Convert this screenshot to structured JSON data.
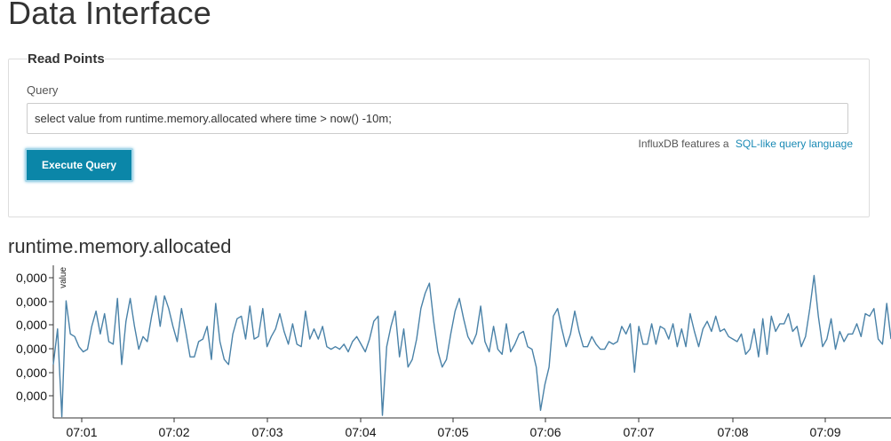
{
  "header": {
    "title": "Data Interface"
  },
  "read_points": {
    "legend": "Read Points",
    "query_label": "Query",
    "query_value": "select value from runtime.memory.allocated where time > now() -10m;",
    "hint_text": "InfluxDB features a",
    "hint_link": "SQL-like query language",
    "execute_label": "Execute Query"
  },
  "series": {
    "title": "runtime.memory.allocated"
  },
  "colors": {
    "line": "#4a82a8",
    "button": "#0b86a8",
    "link": "#1a8ab5"
  },
  "chart_data": {
    "type": "line",
    "ylabel": "value",
    "y_tick_labels": [
      "0,000",
      "0,000",
      "0,000",
      "0,000",
      "0,000",
      "0,000"
    ],
    "x_tick_labels": [
      "07:01",
      "07:02",
      "07:03",
      "07:04",
      "07:05",
      "07:06",
      "07:07",
      "07:08",
      "07:09"
    ],
    "series": [
      {
        "values": [
          2.1,
          3.5,
          0.05,
          4.6,
          3.3,
          3.2,
          2.8,
          2.6,
          2.7,
          3.6,
          4.2,
          3.3,
          4.1,
          3.0,
          2.9,
          4.7,
          2.1,
          3.8,
          4.7,
          3.6,
          2.7,
          3.2,
          3.0,
          4.0,
          4.8,
          3.6,
          4.8,
          4.3,
          3.6,
          3.0,
          4.3,
          3.4,
          2.4,
          2.4,
          3.0,
          3.1,
          3.6,
          2.3,
          4.5,
          3.0,
          2.3,
          2.1,
          3.3,
          3.9,
          4.0,
          3.1,
          4.4,
          3.1,
          3.2,
          4.3,
          2.8,
          3.2,
          3.5,
          4.1,
          3.4,
          2.9,
          3.7,
          2.9,
          2.8,
          4.2,
          3.1,
          3.5,
          3.1,
          3.6,
          2.8,
          2.7,
          2.8,
          2.7,
          2.9,
          2.6,
          3.0,
          3.2,
          2.9,
          2.6,
          3.1,
          3.8,
          4.0,
          0.1,
          2.8,
          3.6,
          4.2,
          2.4,
          3.5,
          2.0,
          2.3,
          3.1,
          4.3,
          4.9,
          5.3,
          3.8,
          2.6,
          2.0,
          2.3,
          3.3,
          4.2,
          4.7,
          3.9,
          3.2,
          2.9,
          3.3,
          4.4,
          3.0,
          2.6,
          3.6,
          2.7,
          2.5,
          3.7,
          2.6,
          2.9,
          3.3,
          3.4,
          2.8,
          2.7,
          2.0,
          0.3,
          1.3,
          2.0,
          4.0,
          4.3,
          3.5,
          2.8,
          3.3,
          4.2,
          3.4,
          2.8,
          2.8,
          3.2,
          2.9,
          2.7,
          2.7,
          3.0,
          2.9,
          3.0,
          3.6,
          3.3,
          3.7,
          1.8,
          3.6,
          2.9,
          2.9,
          3.7,
          2.9,
          3.6,
          3.5,
          3.1,
          3.7,
          2.8,
          3.5,
          2.8,
          4.1,
          3.4,
          2.8,
          3.5,
          3.8,
          3.4,
          4.0,
          3.4,
          3.5,
          3.2,
          3.1,
          3.0,
          3.3,
          2.5,
          2.7,
          3.5,
          2.4,
          3.9,
          2.5,
          4.0,
          3.4,
          3.7,
          3.7,
          4.1,
          3.4,
          3.6,
          2.8,
          3.2,
          4.3,
          5.6,
          4.0,
          2.8,
          3.1,
          3.9,
          2.7,
          3.4,
          3.0,
          3.3,
          3.3,
          3.7,
          3.2,
          4.1,
          4.0,
          4.3,
          3.1,
          2.9,
          4.5,
          3.1
        ]
      }
    ]
  }
}
